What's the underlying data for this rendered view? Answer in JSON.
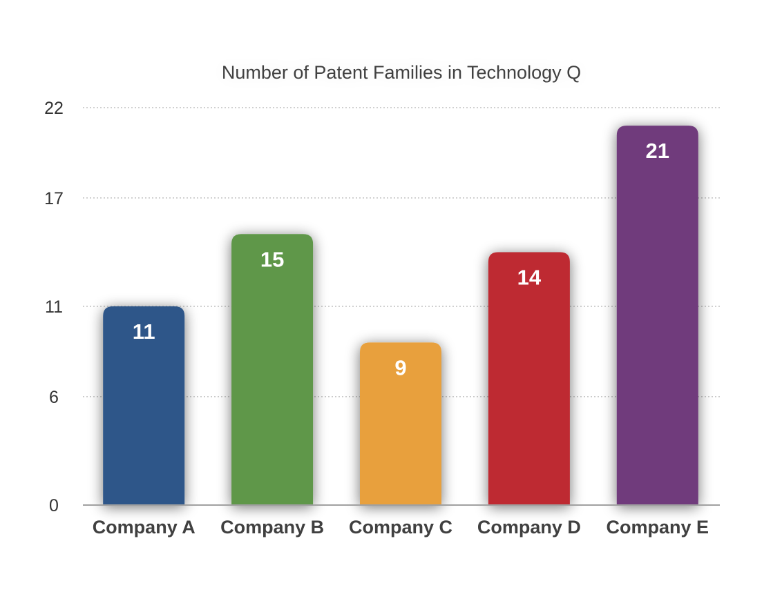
{
  "chart_data": {
    "type": "bar",
    "title": "Number of Patent Families in Technology Q",
    "xlabel": "",
    "ylabel": "",
    "categories": [
      "Company A",
      "Company B",
      "Company C",
      "Company D",
      "Company E"
    ],
    "values": [
      11,
      15,
      9,
      14,
      21
    ],
    "data_labels": [
      "11",
      "15",
      "9",
      "14",
      "21"
    ],
    "bar_colors": [
      "#2e5789",
      "#5e9748",
      "#e8a03c",
      "#be2a31",
      "#703b7c"
    ],
    "yticks": [
      0,
      6,
      11,
      17,
      22
    ],
    "ytick_labels": [
      "0",
      "6",
      "11",
      "17",
      "22"
    ],
    "ylim": [
      0,
      22
    ],
    "grid": true,
    "legend": "none"
  }
}
